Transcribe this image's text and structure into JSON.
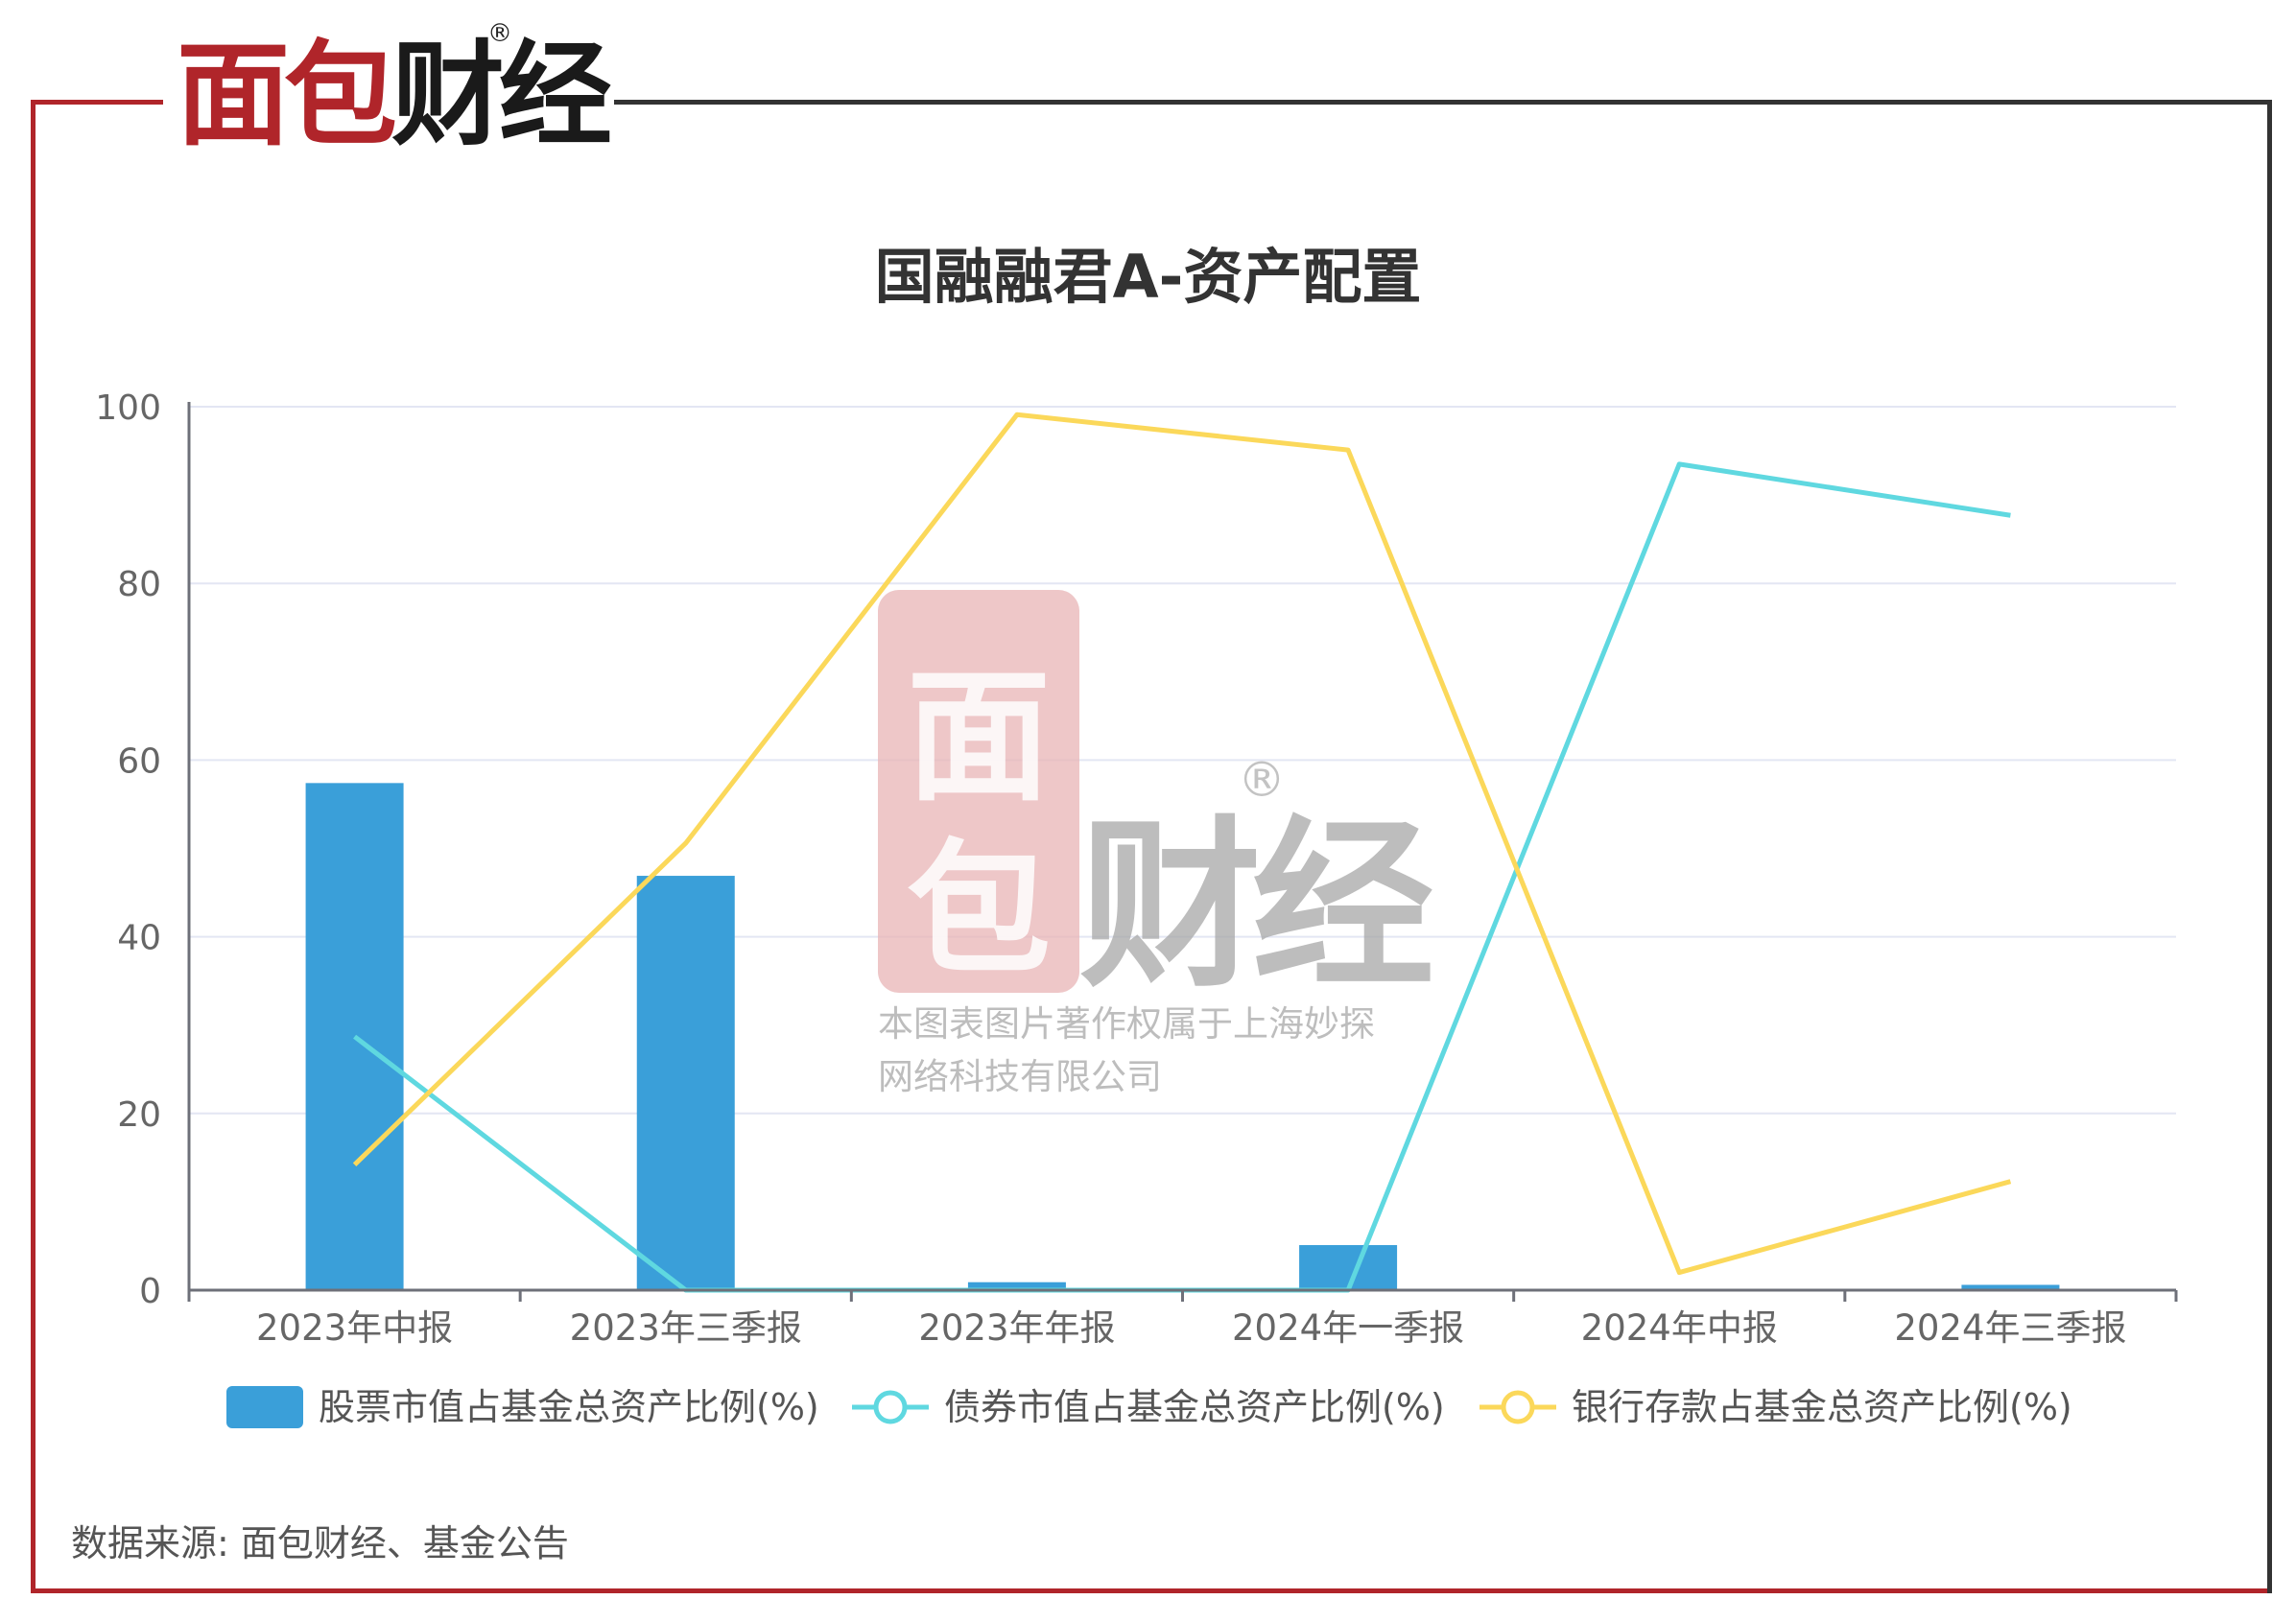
{
  "brand": {
    "logo_text": "面包财经",
    "reg_mark": "®"
  },
  "colors": {
    "brand_red": "#b0252a",
    "bar": "#3a9fd9",
    "bond_line": "#5fd8e0",
    "bank_line": "#fbd85a",
    "grid": "#e3e6f3",
    "axis_text": "#666666"
  },
  "chart_data": {
    "type": "bar",
    "title": "国融融君A-资产配置",
    "categories": [
      "2023年中报",
      "2023年三季报",
      "2023年年报",
      "2024年一季报",
      "2024年中报",
      "2024年三季报"
    ],
    "ylim": [
      0,
      100
    ],
    "yticks": [
      0,
      20,
      40,
      60,
      80,
      100
    ],
    "grid": true,
    "legend_position": "bottom",
    "series": [
      {
        "name": "股票市值占基金总资产比例(%)",
        "type": "bar",
        "color": "#3a9fd9",
        "values": [
          57.4,
          46.9,
          0.9,
          5.1,
          0.0,
          0.6
        ]
      },
      {
        "name": "债券市值占基金总资产比例(%)",
        "type": "line",
        "color": "#5fd8e0",
        "values": [
          28.7,
          0.0,
          0.0,
          0.0,
          93.5,
          87.7
        ]
      },
      {
        "name": "银行存款占基金总资产比例(%)",
        "type": "line",
        "color": "#fbd85a",
        "values": [
          14.2,
          50.6,
          99.1,
          95.1,
          2.0,
          12.3
        ]
      }
    ]
  },
  "watermark": {
    "logo_text": "面包财经",
    "line1": "本图表图片著作权属于上海妙探",
    "line2": "网络科技有限公司"
  },
  "source_text": "数据来源: 面包财经、基金公告"
}
